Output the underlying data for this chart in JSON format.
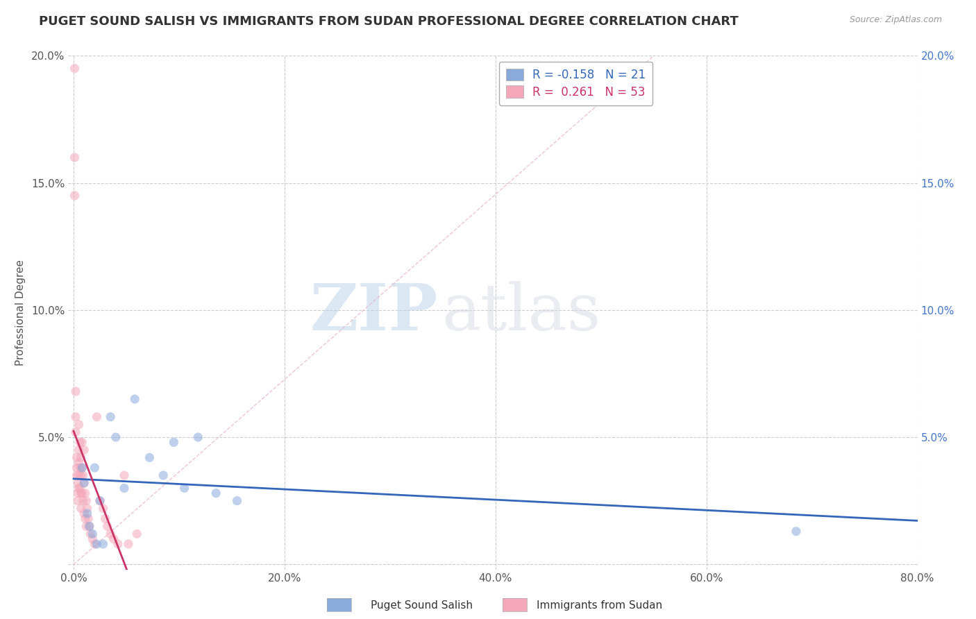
{
  "title": "PUGET SOUND SALISH VS IMMIGRANTS FROM SUDAN PROFESSIONAL DEGREE CORRELATION CHART",
  "source": "Source: ZipAtlas.com",
  "xlabel": "",
  "ylabel": "Professional Degree",
  "xlim": [
    -0.005,
    0.8
  ],
  "ylim": [
    -0.002,
    0.2
  ],
  "xticks": [
    0.0,
    0.2,
    0.4,
    0.6,
    0.8
  ],
  "xtick_labels": [
    "0.0%",
    "20.0%",
    "40.0%",
    "60.0%",
    "80.0%"
  ],
  "yticks": [
    0.0,
    0.05,
    0.1,
    0.15,
    0.2
  ],
  "ytick_labels": [
    "",
    "5.0%",
    "10.0%",
    "15.0%",
    "20.0%"
  ],
  "right_ytick_labels": [
    "",
    "5.0%",
    "10.0%",
    "15.0%",
    "20.0%"
  ],
  "blue_R": -0.158,
  "blue_N": 21,
  "pink_R": 0.261,
  "pink_N": 53,
  "blue_color": "#89aadb",
  "pink_color": "#f4a7b9",
  "blue_line_color": "#3366bb",
  "pink_line_color": "#cc3366",
  "background_color": "#ffffff",
  "grid_color": "#cccccc",
  "blue_scatter_x": [
    0.008,
    0.01,
    0.013,
    0.015,
    0.018,
    0.02,
    0.022,
    0.025,
    0.028,
    0.035,
    0.04,
    0.048,
    0.058,
    0.072,
    0.085,
    0.095,
    0.105,
    0.118,
    0.135,
    0.155,
    0.685
  ],
  "blue_scatter_y": [
    0.038,
    0.032,
    0.02,
    0.015,
    0.012,
    0.038,
    0.008,
    0.025,
    0.008,
    0.058,
    0.05,
    0.03,
    0.065,
    0.042,
    0.035,
    0.048,
    0.03,
    0.05,
    0.028,
    0.025,
    0.013
  ],
  "pink_scatter_x": [
    0.001,
    0.001,
    0.001,
    0.002,
    0.002,
    0.002,
    0.003,
    0.003,
    0.003,
    0.004,
    0.004,
    0.004,
    0.005,
    0.005,
    0.005,
    0.005,
    0.005,
    0.006,
    0.006,
    0.006,
    0.007,
    0.007,
    0.007,
    0.007,
    0.008,
    0.008,
    0.008,
    0.009,
    0.009,
    0.01,
    0.01,
    0.01,
    0.011,
    0.011,
    0.012,
    0.012,
    0.013,
    0.014,
    0.015,
    0.016,
    0.018,
    0.02,
    0.022,
    0.025,
    0.028,
    0.03,
    0.032,
    0.035,
    0.038,
    0.042,
    0.048,
    0.052,
    0.06
  ],
  "pink_scatter_y": [
    0.195,
    0.16,
    0.145,
    0.068,
    0.058,
    0.052,
    0.042,
    0.038,
    0.035,
    0.032,
    0.028,
    0.025,
    0.055,
    0.045,
    0.04,
    0.035,
    0.03,
    0.048,
    0.038,
    0.03,
    0.042,
    0.035,
    0.028,
    0.022,
    0.048,
    0.038,
    0.028,
    0.035,
    0.025,
    0.045,
    0.032,
    0.02,
    0.028,
    0.018,
    0.025,
    0.015,
    0.022,
    0.018,
    0.015,
    0.012,
    0.01,
    0.008,
    0.058,
    0.025,
    0.022,
    0.018,
    0.015,
    0.012,
    0.01,
    0.008,
    0.035,
    0.008,
    0.012
  ],
  "watermark_zip": "ZIP",
  "watermark_atlas": "atlas",
  "marker_size": 90,
  "marker_alpha": 0.55,
  "title_fontsize": 13,
  "label_fontsize": 11,
  "tick_fontsize": 11,
  "legend_fontsize": 12
}
